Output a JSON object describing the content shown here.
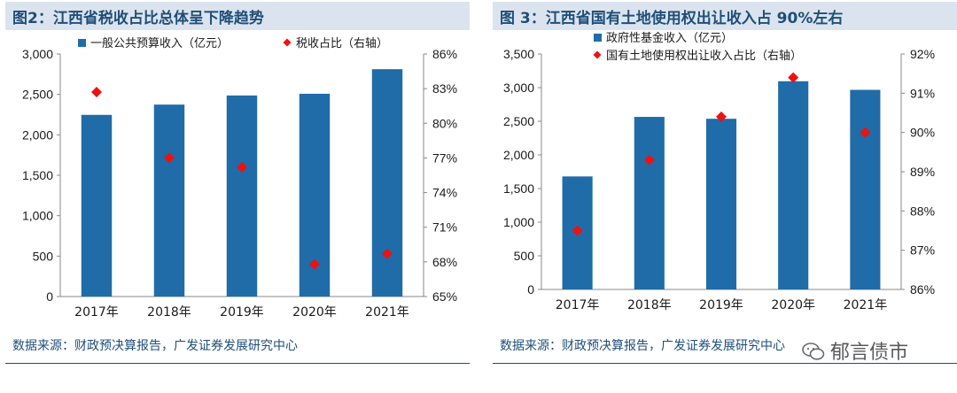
{
  "chart_data": [
    {
      "type": "bar",
      "title": "图2：江西省税收占比总体呈下降趋势",
      "categories": [
        "2017年",
        "2018年",
        "2019年",
        "2020年",
        "2021年"
      ],
      "series": [
        {
          "name": "一般公共预算收入（亿元）",
          "type": "bar",
          "axis": "left",
          "values": [
            2247,
            2374,
            2487,
            2508,
            2812
          ]
        },
        {
          "name": "税收占比（右轴）",
          "type": "scatter",
          "axis": "right",
          "values": [
            82.7,
            77.0,
            76.2,
            67.8,
            68.7
          ]
        }
      ],
      "ylim_left": [
        0,
        3000
      ],
      "yticks_left": [
        "0",
        "500",
        "1,000",
        "1,500",
        "2,000",
        "2,500",
        "3,000"
      ],
      "ylim_right": [
        65,
        86
      ],
      "yticks_right": [
        "65%",
        "68%",
        "71%",
        "74%",
        "77%",
        "80%",
        "83%",
        "86%"
      ],
      "source": "数据来源：财政预决算报告，广发证券发展研究中心",
      "colors": {
        "bar": "#1f6ca8",
        "marker": "#ee1111",
        "text": "#1f4e79"
      }
    },
    {
      "type": "bar",
      "title": "图 3：江西省国有土地使用权出让收入占 90%左右",
      "categories": [
        "2017年",
        "2018年",
        "2019年",
        "2020年",
        "2021年"
      ],
      "series": [
        {
          "name": "政府性基金收入（亿元）",
          "type": "bar",
          "axis": "left",
          "values": [
            1680,
            2565,
            2537,
            3095,
            2967
          ]
        },
        {
          "name": "国有土地使用权出让收入占比（右轴）",
          "type": "scatter",
          "axis": "right",
          "values": [
            87.5,
            89.3,
            90.4,
            91.4,
            90.0
          ]
        }
      ],
      "ylim_left": [
        0,
        3500
      ],
      "yticks_left": [
        "0",
        "500",
        "1,000",
        "1,500",
        "2,000",
        "2,500",
        "3,000",
        "3,500"
      ],
      "ylim_right": [
        86,
        92
      ],
      "yticks_right": [
        "86%",
        "87%",
        "88%",
        "89%",
        "90%",
        "91%",
        "92%"
      ],
      "source": "数据来源：财政预决算报告，广发证券发展研究中心",
      "colors": {
        "bar": "#1f6ca8",
        "marker": "#ee1111",
        "text": "#1f4e79"
      }
    }
  ],
  "watermark": "郁言债市"
}
